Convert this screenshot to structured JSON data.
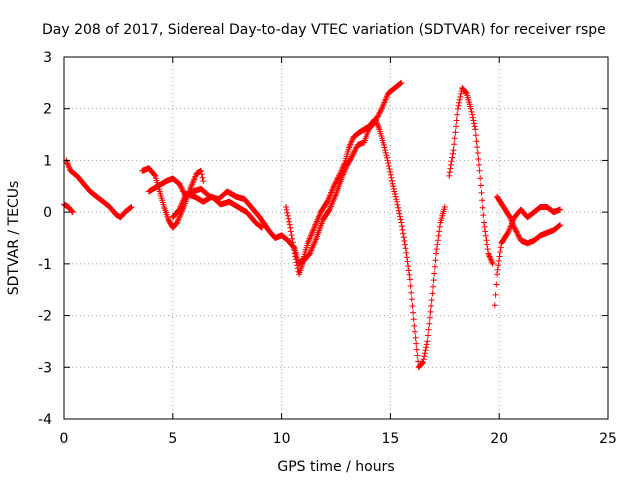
{
  "chart_data": {
    "type": "scatter",
    "title": "Day 208 of 2017, Sidereal Day-to-day VTEC variation (SDTVAR) for receiver rspe",
    "xlabel": "GPS time / hours",
    "ylabel": "SDTVAR / TECUs",
    "xlim": [
      0,
      25
    ],
    "ylim": [
      -4,
      3
    ],
    "xticks": [
      "0",
      "5",
      "10",
      "15",
      "20",
      "25"
    ],
    "yticks": [
      "3",
      "2",
      "1",
      "0",
      "-1",
      "-2",
      "-3",
      "-4"
    ],
    "grid": true,
    "marker": "+",
    "color": "#ff0000",
    "series": [
      {
        "name": "trace-a",
        "points": [
          [
            0.0,
            0.15
          ],
          [
            0.2,
            0.1
          ],
          [
            0.4,
            0.0
          ]
        ]
      },
      {
        "name": "trace-b",
        "points": [
          [
            0.1,
            1.0
          ],
          [
            0.3,
            0.8
          ],
          [
            0.6,
            0.7
          ],
          [
            0.9,
            0.55
          ],
          [
            1.2,
            0.4
          ],
          [
            1.5,
            0.3
          ],
          [
            1.8,
            0.2
          ],
          [
            2.1,
            0.1
          ],
          [
            2.4,
            -0.05
          ],
          [
            2.6,
            -0.1
          ],
          [
            2.8,
            0.0
          ],
          [
            3.1,
            0.1
          ]
        ]
      },
      {
        "name": "trace-c",
        "points": [
          [
            3.6,
            0.8
          ],
          [
            3.9,
            0.85
          ],
          [
            4.2,
            0.7
          ],
          [
            4.4,
            0.4
          ],
          [
            4.6,
            0.1
          ],
          [
            4.8,
            -0.15
          ],
          [
            5.0,
            -0.3
          ],
          [
            5.2,
            -0.2
          ],
          [
            5.5,
            0.1
          ],
          [
            5.8,
            0.45
          ],
          [
            6.1,
            0.75
          ],
          [
            6.3,
            0.8
          ],
          [
            6.4,
            0.6
          ]
        ]
      },
      {
        "name": "trace-d",
        "points": [
          [
            3.9,
            0.4
          ],
          [
            4.3,
            0.5
          ],
          [
            4.7,
            0.6
          ],
          [
            5.0,
            0.65
          ],
          [
            5.3,
            0.55
          ],
          [
            5.6,
            0.3
          ],
          [
            5.9,
            0.4
          ],
          [
            6.3,
            0.45
          ],
          [
            6.7,
            0.3
          ],
          [
            7.1,
            0.25
          ],
          [
            7.5,
            0.4
          ],
          [
            7.9,
            0.3
          ],
          [
            8.3,
            0.25
          ],
          [
            8.6,
            0.1
          ],
          [
            9.0,
            -0.1
          ],
          [
            9.4,
            -0.35
          ],
          [
            9.7,
            -0.5
          ],
          [
            10.0,
            -0.45
          ],
          [
            10.3,
            -0.55
          ],
          [
            10.6,
            -0.7
          ],
          [
            10.8,
            -1.0
          ],
          [
            11.0,
            -0.9
          ],
          [
            11.2,
            -0.6
          ],
          [
            11.5,
            -0.3
          ],
          [
            11.8,
            0.0
          ],
          [
            12.1,
            0.2
          ],
          [
            12.4,
            0.5
          ],
          [
            12.7,
            0.75
          ],
          [
            12.9,
            0.95
          ],
          [
            13.1,
            1.25
          ],
          [
            13.3,
            1.45
          ],
          [
            13.6,
            1.55
          ],
          [
            14.0,
            1.65
          ],
          [
            14.3,
            1.8
          ],
          [
            14.5,
            1.6
          ],
          [
            14.7,
            1.3
          ],
          [
            14.9,
            0.95
          ],
          [
            15.1,
            0.55
          ],
          [
            15.3,
            0.2
          ],
          [
            15.5,
            -0.2
          ],
          [
            15.7,
            -0.7
          ],
          [
            15.9,
            -1.3
          ],
          [
            16.1,
            -2.2
          ],
          [
            16.3,
            -3.0
          ],
          [
            16.5,
            -2.9
          ],
          [
            16.7,
            -2.5
          ],
          [
            16.9,
            -1.7
          ],
          [
            17.1,
            -0.8
          ],
          [
            17.3,
            -0.2
          ],
          [
            17.5,
            0.1
          ]
        ]
      },
      {
        "name": "trace-e",
        "points": [
          [
            5.0,
            -0.1
          ],
          [
            5.3,
            0.05
          ],
          [
            5.6,
            0.35
          ],
          [
            6.0,
            0.3
          ],
          [
            6.4,
            0.2
          ],
          [
            6.8,
            0.3
          ],
          [
            7.2,
            0.15
          ],
          [
            7.6,
            0.2
          ],
          [
            8.0,
            0.1
          ],
          [
            8.4,
            0.0
          ],
          [
            8.8,
            -0.2
          ],
          [
            9.1,
            -0.3
          ]
        ]
      },
      {
        "name": "trace-f",
        "points": [
          [
            10.2,
            0.1
          ],
          [
            10.4,
            -0.3
          ],
          [
            10.6,
            -0.8
          ],
          [
            10.8,
            -1.2
          ],
          [
            11.0,
            -0.95
          ],
          [
            11.3,
            -0.8
          ],
          [
            11.6,
            -0.5
          ],
          [
            11.9,
            -0.15
          ],
          [
            12.2,
            0.05
          ],
          [
            12.5,
            0.35
          ],
          [
            12.8,
            0.7
          ],
          [
            13.0,
            0.9
          ],
          [
            13.2,
            1.05
          ],
          [
            13.5,
            1.3
          ],
          [
            13.8,
            1.35
          ],
          [
            14.0,
            1.6
          ],
          [
            14.3,
            1.75
          ],
          [
            14.6,
            2.0
          ],
          [
            14.9,
            2.3
          ],
          [
            15.2,
            2.4
          ],
          [
            15.5,
            2.5
          ]
        ]
      },
      {
        "name": "trace-g",
        "points": [
          [
            17.7,
            0.7
          ],
          [
            17.9,
            1.2
          ],
          [
            18.1,
            2.0
          ],
          [
            18.3,
            2.4
          ],
          [
            18.5,
            2.3
          ],
          [
            18.7,
            2.0
          ],
          [
            18.9,
            1.6
          ],
          [
            19.1,
            0.8
          ],
          [
            19.3,
            -0.2
          ],
          [
            19.5,
            -0.8
          ],
          [
            19.7,
            -1.0
          ]
        ]
      },
      {
        "name": "trace-h",
        "points": [
          [
            19.8,
            -1.8
          ],
          [
            19.9,
            -1.2
          ],
          [
            20.1,
            -0.6
          ],
          [
            20.4,
            -0.4
          ],
          [
            20.7,
            -0.1
          ],
          [
            21.0,
            0.05
          ],
          [
            21.3,
            -0.1
          ],
          [
            21.6,
            0.0
          ],
          [
            21.9,
            0.1
          ],
          [
            22.2,
            0.1
          ],
          [
            22.5,
            0.0
          ],
          [
            22.8,
            0.05
          ]
        ]
      },
      {
        "name": "trace-i",
        "points": [
          [
            19.9,
            0.3
          ],
          [
            20.2,
            0.1
          ],
          [
            20.5,
            -0.1
          ],
          [
            20.7,
            -0.3
          ],
          [
            21.0,
            -0.55
          ],
          [
            21.3,
            -0.6
          ],
          [
            21.6,
            -0.55
          ],
          [
            21.9,
            -0.45
          ],
          [
            22.2,
            -0.4
          ],
          [
            22.5,
            -0.35
          ],
          [
            22.8,
            -0.25
          ]
        ]
      }
    ]
  }
}
